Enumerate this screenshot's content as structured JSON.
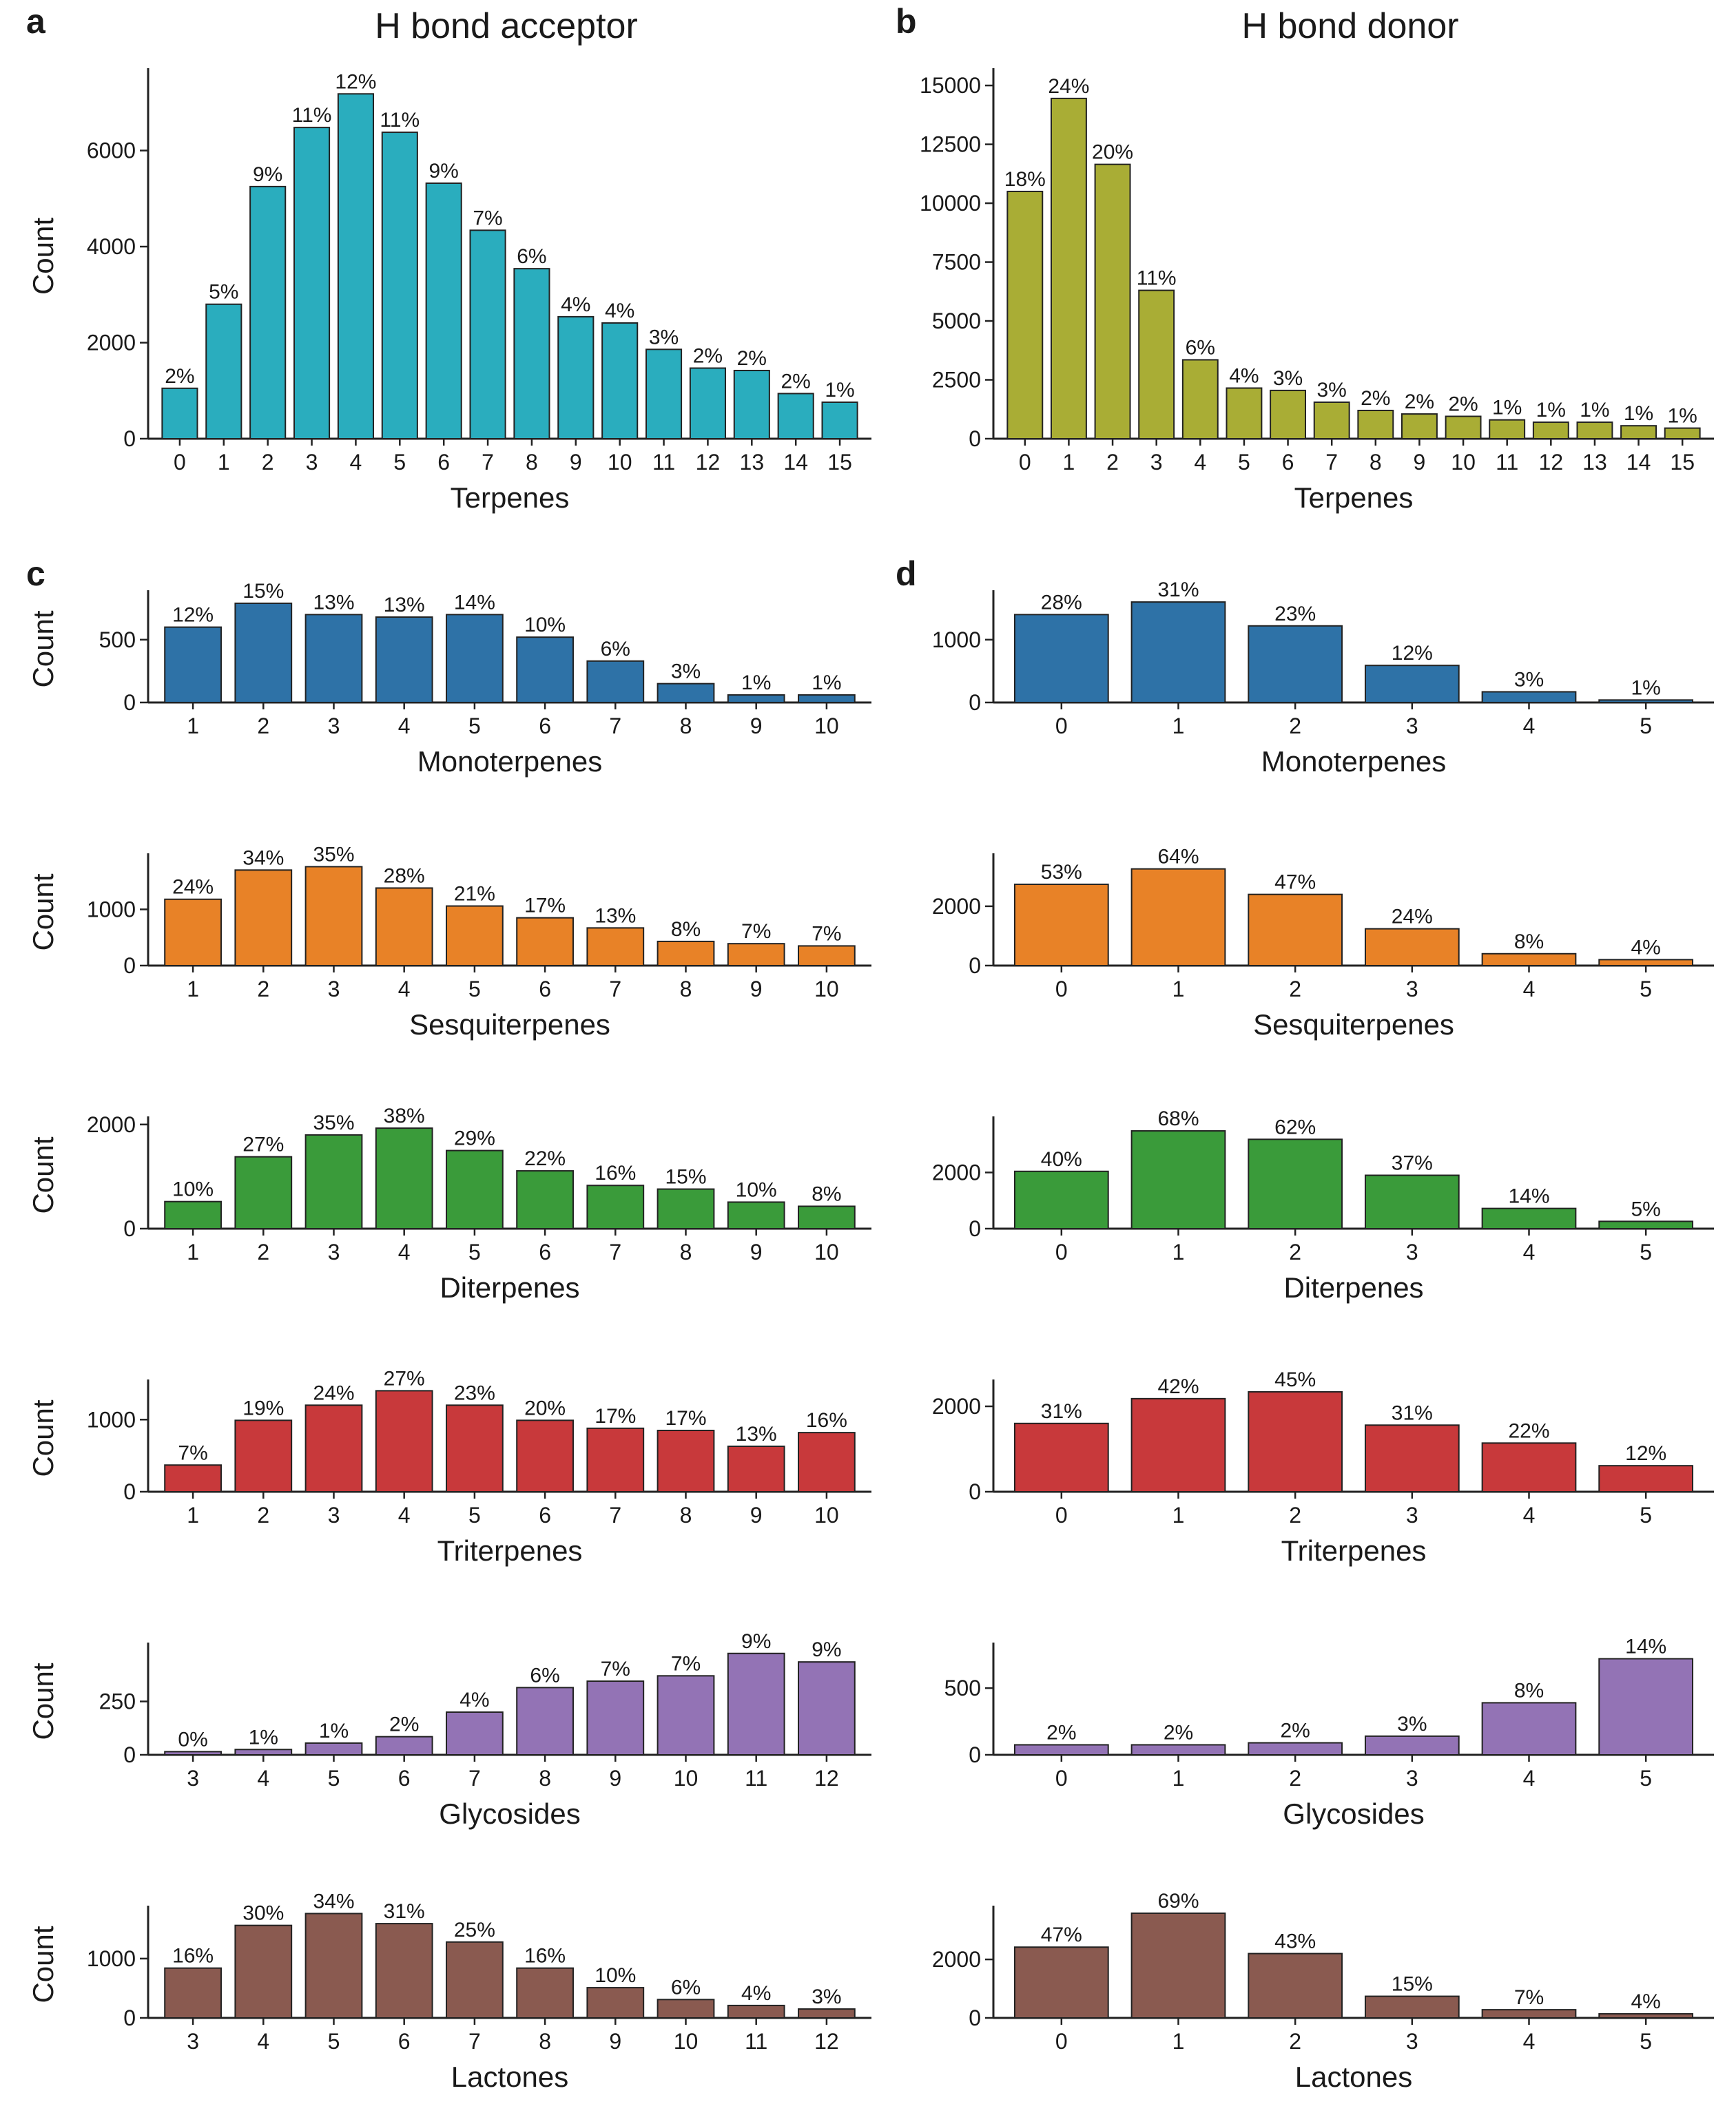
{
  "panel_letters": [
    "a",
    "b",
    "c",
    "d"
  ],
  "titles": {
    "left": "H bond acceptor",
    "right": "H bond donor"
  },
  "colors": {
    "Terpenes_acceptor": "#2aadbe",
    "Terpenes_donor": "#a9ad35",
    "Monoterpenes": "#2e72a7",
    "Sesquiterpenes": "#e88227",
    "Diterpenes": "#3a9b3a",
    "Triterpenes": "#c8393b",
    "Glycosides": "#9373b5",
    "Lactones": "#8a5a50"
  },
  "chart_data": [
    {
      "id": "a",
      "type": "bar",
      "title": "H bond acceptor",
      "panel": "a",
      "xlabel": "Terpenes",
      "ylabel": "Count",
      "ylim": [
        0,
        7600
      ],
      "yticks": [
        0,
        2000,
        4000,
        6000
      ],
      "categories": [
        "0",
        "1",
        "2",
        "3",
        "4",
        "5",
        "6",
        "7",
        "8",
        "9",
        "10",
        "11",
        "12",
        "13",
        "14",
        "15"
      ],
      "values": [
        1050,
        2800,
        5250,
        6480,
        7180,
        6380,
        5320,
        4340,
        3540,
        2540,
        2410,
        1860,
        1470,
        1420,
        940,
        760
      ],
      "labels": [
        "2%",
        "5%",
        "9%",
        "11%",
        "12%",
        "11%",
        "9%",
        "7%",
        "6%",
        "4%",
        "4%",
        "3%",
        "2%",
        "2%",
        "2%",
        "1%"
      ],
      "color_key": "Terpenes_acceptor"
    },
    {
      "id": "b",
      "type": "bar",
      "title": "H bond donor",
      "panel": "b",
      "xlabel": "Terpenes",
      "ylabel": "",
      "ylim": [
        0,
        15500
      ],
      "yticks": [
        0,
        2500,
        5000,
        7500,
        10000,
        12500,
        15000
      ],
      "categories": [
        "0",
        "1",
        "2",
        "3",
        "4",
        "5",
        "6",
        "7",
        "8",
        "9",
        "10",
        "11",
        "12",
        "13",
        "14",
        "15"
      ],
      "values": [
        10500,
        14450,
        11650,
        6300,
        3350,
        2150,
        2050,
        1550,
        1200,
        1050,
        950,
        800,
        700,
        700,
        550,
        450
      ],
      "labels": [
        "18%",
        "24%",
        "20%",
        "11%",
        "6%",
        "4%",
        "3%",
        "3%",
        "2%",
        "2%",
        "2%",
        "1%",
        "1%",
        "1%",
        "1%",
        "1%"
      ],
      "color_key": "Terpenes_donor"
    },
    {
      "id": "c1",
      "type": "bar",
      "panel": "c",
      "xlabel": "Monoterpenes",
      "ylabel": "Count",
      "ylim": [
        0,
        850
      ],
      "yticks": [
        0,
        500
      ],
      "categories": [
        "1",
        "2",
        "3",
        "4",
        "5",
        "6",
        "7",
        "8",
        "9",
        "10"
      ],
      "values": [
        600,
        790,
        700,
        680,
        700,
        520,
        330,
        150,
        60,
        60
      ],
      "labels": [
        "12%",
        "15%",
        "13%",
        "13%",
        "14%",
        "10%",
        "6%",
        "3%",
        "1%",
        "1%"
      ],
      "color_key": "Monoterpenes"
    },
    {
      "id": "d1",
      "type": "bar",
      "panel": "d",
      "xlabel": "Monoterpenes",
      "ylabel": "",
      "ylim": [
        0,
        1700
      ],
      "yticks": [
        0,
        1000
      ],
      "categories": [
        "0",
        "1",
        "2",
        "3",
        "4",
        "5"
      ],
      "values": [
        1400,
        1600,
        1220,
        590,
        170,
        40
      ],
      "labels": [
        "28%",
        "31%",
        "23%",
        "12%",
        "3%",
        "1%"
      ],
      "color_key": "Monoterpenes"
    },
    {
      "id": "c2",
      "type": "bar",
      "panel": "",
      "xlabel": "Sesquiterpenes",
      "ylabel": "Count",
      "ylim": [
        0,
        1900
      ],
      "yticks": [
        0,
        1000
      ],
      "categories": [
        "1",
        "2",
        "3",
        "4",
        "5",
        "6",
        "7",
        "8",
        "9",
        "10"
      ],
      "values": [
        1180,
        1700,
        1760,
        1380,
        1060,
        850,
        670,
        430,
        390,
        350
      ],
      "labels": [
        "24%",
        "34%",
        "35%",
        "28%",
        "21%",
        "17%",
        "13%",
        "8%",
        "7%",
        "7%"
      ],
      "color_key": "Sesquiterpenes"
    },
    {
      "id": "d2",
      "type": "bar",
      "panel": "",
      "xlabel": "Sesquiterpenes",
      "ylabel": "",
      "ylim": [
        0,
        3600
      ],
      "yticks": [
        0,
        2000
      ],
      "categories": [
        "0",
        "1",
        "2",
        "3",
        "4",
        "5"
      ],
      "values": [
        2740,
        3260,
        2400,
        1240,
        400,
        200
      ],
      "labels": [
        "53%",
        "64%",
        "47%",
        "24%",
        "8%",
        "4%"
      ],
      "color_key": "Sesquiterpenes"
    },
    {
      "id": "c3",
      "type": "bar",
      "panel": "",
      "xlabel": "Diterpenes",
      "ylabel": "Count",
      "ylim": [
        0,
        2050
      ],
      "yticks": [
        0,
        2000
      ],
      "categories": [
        "1",
        "2",
        "3",
        "4",
        "5",
        "6",
        "7",
        "8",
        "9",
        "10"
      ],
      "values": [
        520,
        1380,
        1800,
        1930,
        1500,
        1110,
        830,
        760,
        510,
        430
      ],
      "labels": [
        "10%",
        "27%",
        "35%",
        "38%",
        "29%",
        "22%",
        "16%",
        "15%",
        "10%",
        "8%"
      ],
      "color_key": "Diterpenes"
    },
    {
      "id": "d3",
      "type": "bar",
      "panel": "",
      "xlabel": "Diterpenes",
      "ylabel": "",
      "ylim": [
        0,
        3800
      ],
      "yticks": [
        0,
        2000
      ],
      "categories": [
        "0",
        "1",
        "2",
        "3",
        "4",
        "5"
      ],
      "values": [
        2040,
        3480,
        3180,
        1900,
        720,
        260
      ],
      "labels": [
        "40%",
        "68%",
        "62%",
        "37%",
        "14%",
        "5%"
      ],
      "color_key": "Diterpenes"
    },
    {
      "id": "c4",
      "type": "bar",
      "panel": "",
      "xlabel": "Triterpenes",
      "ylabel": "Count",
      "ylim": [
        0,
        1480
      ],
      "yticks": [
        0,
        1000
      ],
      "categories": [
        "1",
        "2",
        "3",
        "4",
        "5",
        "6",
        "7",
        "8",
        "9",
        "10"
      ],
      "values": [
        370,
        990,
        1200,
        1400,
        1200,
        990,
        880,
        850,
        630,
        820
      ],
      "labels": [
        "7%",
        "19%",
        "24%",
        "27%",
        "23%",
        "20%",
        "17%",
        "17%",
        "13%",
        "16%"
      ],
      "color_key": "Triterpenes"
    },
    {
      "id": "d4",
      "type": "bar",
      "panel": "",
      "xlabel": "Triterpenes",
      "ylabel": "",
      "ylim": [
        0,
        2500
      ],
      "yticks": [
        0,
        2000
      ],
      "categories": [
        "0",
        "1",
        "2",
        "3",
        "4",
        "5"
      ],
      "values": [
        1600,
        2180,
        2340,
        1560,
        1140,
        610
      ],
      "labels": [
        "31%",
        "42%",
        "45%",
        "31%",
        "22%",
        "12%"
      ],
      "color_key": "Triterpenes"
    },
    {
      "id": "c5",
      "type": "bar",
      "panel": "",
      "xlabel": "Glycosides",
      "ylabel": "Count",
      "ylim": [
        0,
        500
      ],
      "yticks": [
        0,
        250
      ],
      "categories": [
        "3",
        "4",
        "5",
        "6",
        "7",
        "8",
        "9",
        "10",
        "11",
        "12"
      ],
      "values": [
        15,
        25,
        55,
        85,
        200,
        315,
        345,
        370,
        475,
        435
      ],
      "labels": [
        "0%",
        "1%",
        "1%",
        "2%",
        "4%",
        "6%",
        "7%",
        "7%",
        "9%",
        "9%"
      ],
      "color_key": "Glycosides"
    },
    {
      "id": "d5",
      "type": "bar",
      "panel": "",
      "xlabel": "Glycosides",
      "ylabel": "",
      "ylim": [
        0,
        800
      ],
      "yticks": [
        0,
        500
      ],
      "categories": [
        "0",
        "1",
        "2",
        "3",
        "4",
        "5"
      ],
      "values": [
        75,
        75,
        90,
        140,
        390,
        720
      ],
      "labels": [
        "2%",
        "2%",
        "2%",
        "3%",
        "8%",
        "14%"
      ],
      "color_key": "Glycosides"
    },
    {
      "id": "c6",
      "type": "bar",
      "panel": "",
      "xlabel": "Lactones",
      "ylabel": "Count",
      "ylim": [
        0,
        1800
      ],
      "yticks": [
        0,
        1000
      ],
      "categories": [
        "3",
        "4",
        "5",
        "6",
        "7",
        "8",
        "9",
        "10",
        "11",
        "12"
      ],
      "values": [
        840,
        1560,
        1760,
        1590,
        1280,
        840,
        510,
        310,
        210,
        150
      ],
      "labels": [
        "16%",
        "30%",
        "34%",
        "31%",
        "25%",
        "16%",
        "10%",
        "6%",
        "4%",
        "3%"
      ],
      "color_key": "Lactones"
    },
    {
      "id": "d6",
      "type": "bar",
      "panel": "",
      "xlabel": "Lactones",
      "ylabel": "",
      "ylim": [
        0,
        3650
      ],
      "yticks": [
        0,
        2000
      ],
      "categories": [
        "0",
        "1",
        "2",
        "3",
        "4",
        "5"
      ],
      "values": [
        2420,
        3580,
        2200,
        740,
        280,
        140
      ],
      "labels": [
        "47%",
        "69%",
        "43%",
        "15%",
        "7%",
        "4%"
      ],
      "color_key": "Lactones"
    }
  ]
}
